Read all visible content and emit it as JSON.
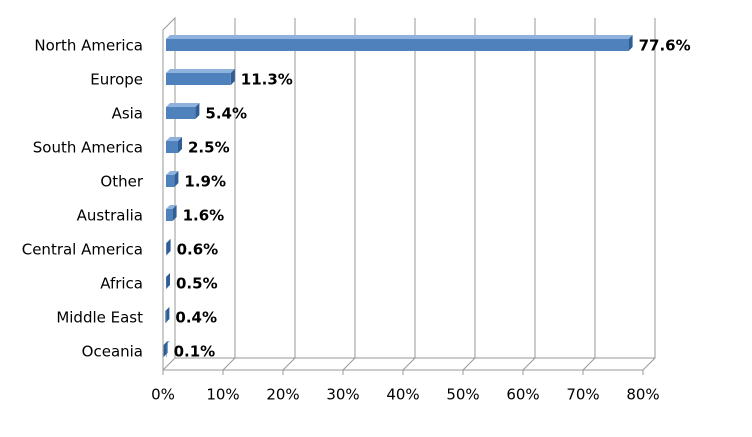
{
  "chart_data": {
    "type": "bar",
    "orientation": "horizontal",
    "categories": [
      "North America",
      "Europe",
      "Asia",
      "South America",
      "Other",
      "Australia",
      "Central America",
      "Africa",
      "Middle East",
      "Oceania"
    ],
    "values": [
      77.6,
      11.3,
      5.4,
      2.5,
      1.9,
      1.6,
      0.6,
      0.5,
      0.4,
      0.1
    ],
    "value_labels": [
      "77.6%",
      "11.3%",
      "5.4%",
      "2.5%",
      "1.9%",
      "1.6%",
      "0.6%",
      "0.5%",
      "0.4%",
      "0.1%"
    ],
    "color": "#4f81bd",
    "xlim": [
      0,
      80
    ],
    "xticks": [
      {
        "value": 0,
        "label": "0%"
      },
      {
        "value": 10,
        "label": "10%"
      },
      {
        "value": 20,
        "label": "20%"
      },
      {
        "value": 30,
        "label": "30%"
      },
      {
        "value": 40,
        "label": "40%"
      },
      {
        "value": 50,
        "label": "50%"
      },
      {
        "value": 60,
        "label": "60%"
      },
      {
        "value": 70,
        "label": "70%"
      },
      {
        "value": 80,
        "label": "80%"
      }
    ],
    "grid": true
  }
}
